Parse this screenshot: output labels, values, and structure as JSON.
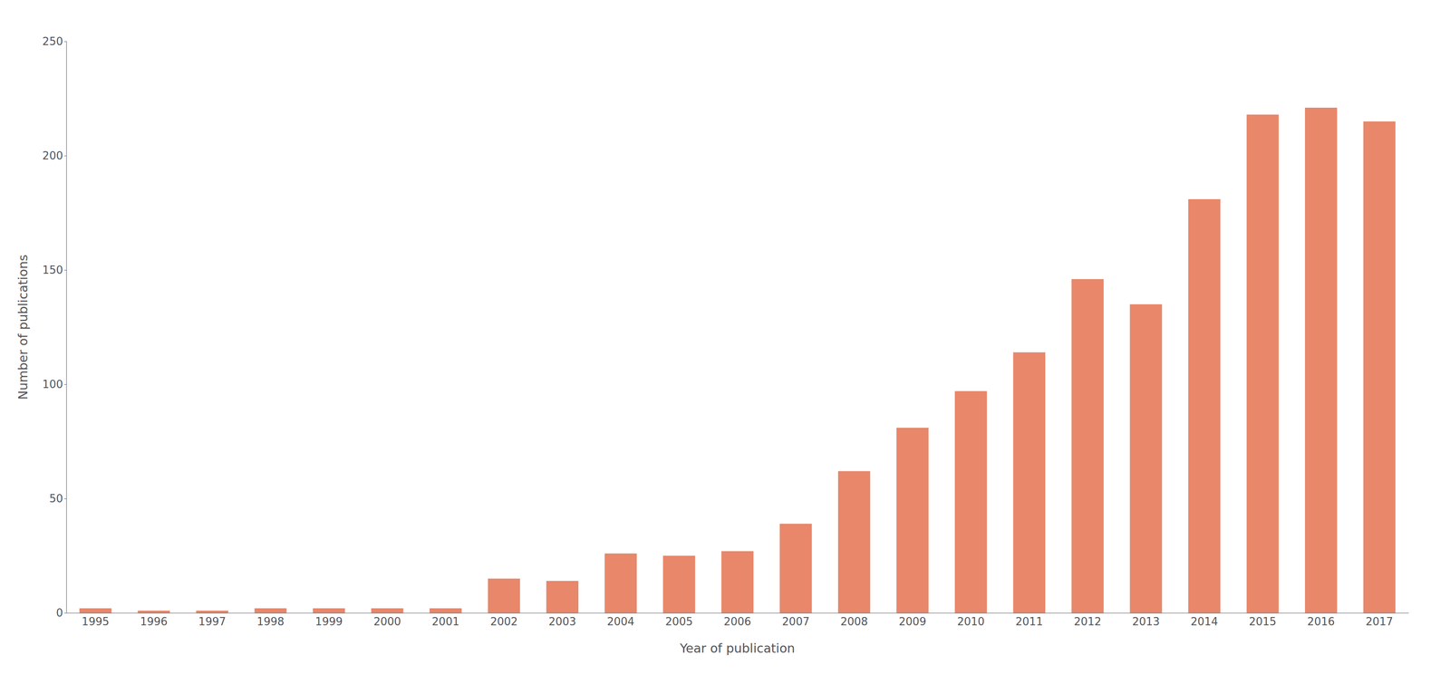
{
  "chart_data": {
    "type": "bar",
    "categories": [
      "1995",
      "1996",
      "1997",
      "1998",
      "1999",
      "2000",
      "2001",
      "2002",
      "2003",
      "2004",
      "2005",
      "2006",
      "2007",
      "2008",
      "2009",
      "2010",
      "2011",
      "2012",
      "2013",
      "2014",
      "2015",
      "2016",
      "2017"
    ],
    "values": [
      2,
      1,
      1,
      2,
      2,
      2,
      2,
      15,
      14,
      26,
      25,
      27,
      39,
      62,
      81,
      97,
      114,
      146,
      135,
      181,
      218,
      221,
      215
    ],
    "color": "#E8876A",
    "xlabel": "Year of publication",
    "ylabel": "Number of publications",
    "ylim": [
      0,
      250
    ],
    "yticks": [
      0,
      50,
      100,
      150,
      200,
      250
    ],
    "grid": false
  }
}
